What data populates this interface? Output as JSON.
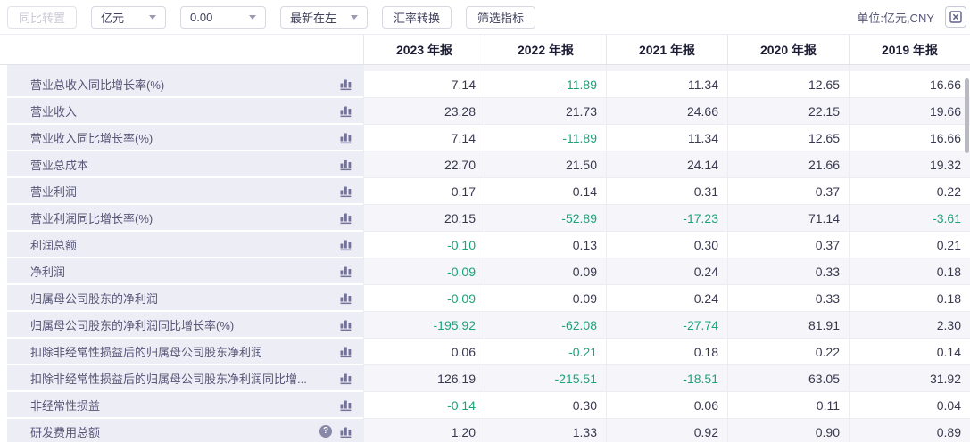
{
  "toolbar": {
    "transpose_label": "同比转置",
    "unit_value": "亿元",
    "decimal_value": "0.00",
    "order_value": "最新在左",
    "currency_label": "汇率转换",
    "filter_label": "筛选指标",
    "unit_note": "单位:亿元,CNY",
    "export_icon": "excel-export"
  },
  "colors": {
    "negative_value": "#1ba37a",
    "positive_value": "#383850",
    "label_column_bg": "#ededf5",
    "stripe_bg": "#f6f6fa",
    "icon_purple": "#72729a"
  },
  "table": {
    "columns": [
      "2023 年报",
      "2022 年报",
      "2021 年报",
      "2020 年报",
      "2019 年报"
    ],
    "rows": [
      {
        "label": "营业总收入同比增长率(%)",
        "help": false,
        "values": [
          "7.14",
          "-11.89",
          "11.34",
          "12.65",
          "16.66"
        ]
      },
      {
        "label": "营业收入",
        "help": false,
        "values": [
          "23.28",
          "21.73",
          "24.66",
          "22.15",
          "19.66"
        ]
      },
      {
        "label": "营业收入同比增长率(%)",
        "help": false,
        "values": [
          "7.14",
          "-11.89",
          "11.34",
          "12.65",
          "16.66"
        ]
      },
      {
        "label": "营业总成本",
        "help": false,
        "values": [
          "22.70",
          "21.50",
          "24.14",
          "21.66",
          "19.32"
        ]
      },
      {
        "label": "营业利润",
        "help": false,
        "values": [
          "0.17",
          "0.14",
          "0.31",
          "0.37",
          "0.22"
        ]
      },
      {
        "label": "营业利润同比增长率(%)",
        "help": false,
        "values": [
          "20.15",
          "-52.89",
          "-17.23",
          "71.14",
          "-3.61"
        ]
      },
      {
        "label": "利润总额",
        "help": false,
        "values": [
          "-0.10",
          "0.13",
          "0.30",
          "0.37",
          "0.21"
        ]
      },
      {
        "label": "净利润",
        "help": false,
        "values": [
          "-0.09",
          "0.09",
          "0.24",
          "0.33",
          "0.18"
        ]
      },
      {
        "label": "归属母公司股东的净利润",
        "help": false,
        "values": [
          "-0.09",
          "0.09",
          "0.24",
          "0.33",
          "0.18"
        ]
      },
      {
        "label": "归属母公司股东的净利润同比增长率(%)",
        "help": false,
        "values": [
          "-195.92",
          "-62.08",
          "-27.74",
          "81.91",
          "2.30"
        ]
      },
      {
        "label": "扣除非经常性损益后的归属母公司股东净利润",
        "help": false,
        "values": [
          "0.06",
          "-0.21",
          "0.18",
          "0.22",
          "0.14"
        ]
      },
      {
        "label": "扣除非经常性损益后的归属母公司股东净利润同比增...",
        "help": false,
        "values": [
          "126.19",
          "-215.51",
          "-18.51",
          "63.05",
          "31.92"
        ]
      },
      {
        "label": "非经常性损益",
        "help": false,
        "values": [
          "-0.14",
          "0.30",
          "0.06",
          "0.11",
          "0.04"
        ]
      },
      {
        "label": "研发费用总额",
        "help": true,
        "values": [
          "1.20",
          "1.33",
          "0.92",
          "0.90",
          "0.89"
        ]
      }
    ]
  }
}
